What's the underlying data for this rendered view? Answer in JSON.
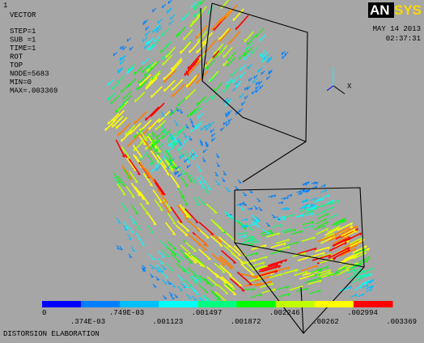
{
  "window_number": "1",
  "plot_type": "VECTOR",
  "info": [
    "STEP=1",
    "SUB =1",
    "TIME=1",
    "ROT",
    "TOP",
    "NODE=5683",
    "MIN=0",
    "MAX=.003369"
  ],
  "logo": {
    "left": "AN",
    "right": "SYS"
  },
  "date": "MAY 14 2013",
  "time": "02:37:31",
  "triad": {
    "x": "X"
  },
  "legend": {
    "colors": [
      "#0000ff",
      "#0080ff",
      "#00c0ff",
      "#00ffff",
      "#00ff80",
      "#00ff00",
      "#c0ff00",
      "#ffff00",
      "#ff8000",
      "#ff0000"
    ],
    "labels": [
      "0",
      ".374E-03",
      ".749E-03",
      ".001123",
      ".001497",
      ".001872",
      ".002246",
      ".00262",
      ".002994",
      ".003369"
    ]
  },
  "caption": "DISTORSION ELABORATION"
}
